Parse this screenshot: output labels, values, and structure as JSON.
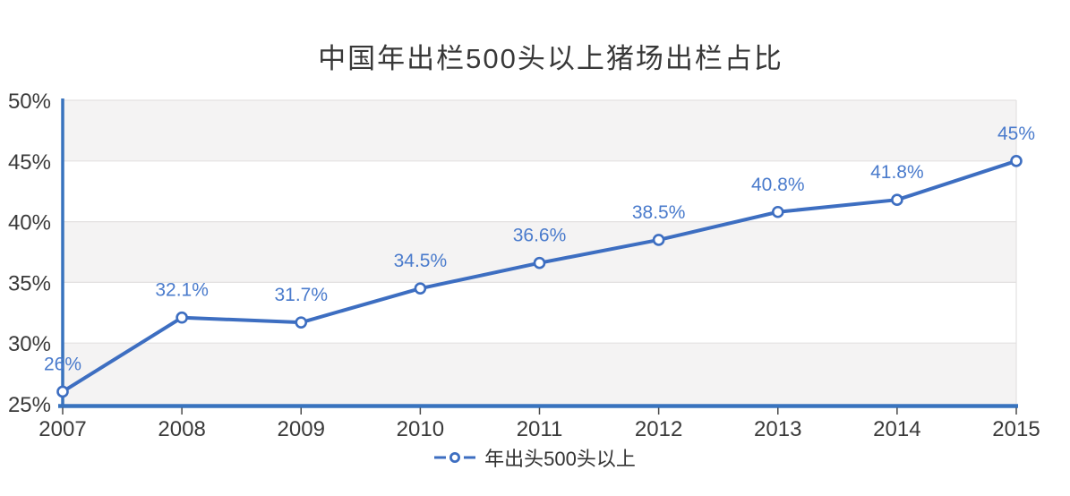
{
  "page": {
    "background": "#FFFFFF"
  },
  "header": {
    "title": "中国年出栏500头以上猪场出栏占比"
  },
  "legend": {
    "label": "年出头500头以上",
    "marker": "dash-open-circle-dash"
  },
  "chart_data": {
    "type": "line",
    "title": "中国年出栏500头以上猪场出栏占比",
    "x": [
      2007,
      2008,
      2009,
      2010,
      2011,
      2012,
      2013,
      2014,
      2015
    ],
    "x_labels": [
      "2007",
      "2008",
      "2009",
      "2010",
      "2011",
      "2012",
      "2013",
      "2014",
      "2015"
    ],
    "series": [
      {
        "name": "年出头500头以上",
        "values": [
          26,
          32.1,
          31.7,
          34.5,
          36.6,
          38.5,
          40.8,
          41.8,
          45
        ],
        "point_labels": [
          "26%",
          "32.1%",
          "31.7%",
          "34.5%",
          "36.6%",
          "38.5%",
          "40.8%",
          "41.8%",
          "45%"
        ]
      }
    ],
    "xlabel": "",
    "ylabel": "",
    "ylim": [
      25,
      50
    ],
    "yticks": [
      25,
      30,
      35,
      40,
      45,
      50
    ],
    "ytick_labels": [
      "25%",
      "30%",
      "35%",
      "40%",
      "45%",
      "50%"
    ],
    "grid": "horizontal",
    "band_fill": "alternating, light band between 25-30 / 35-40 / 45-50",
    "legend_position": "bottom-center",
    "marker_style": "open-circle",
    "colors": {
      "line": "#3D6EC1",
      "axis": "#3873BE",
      "data_label": "#4A7BCC",
      "band": "#F4F3F3",
      "band_alt": "#FFFFFF",
      "grid": "#E3E1E1",
      "tick_mark": "#4A4A4A",
      "tick_label": "#3A3A3A",
      "title": "#383838",
      "legend_text": "#333333",
      "marker_fill": "#FFFFFF"
    }
  }
}
